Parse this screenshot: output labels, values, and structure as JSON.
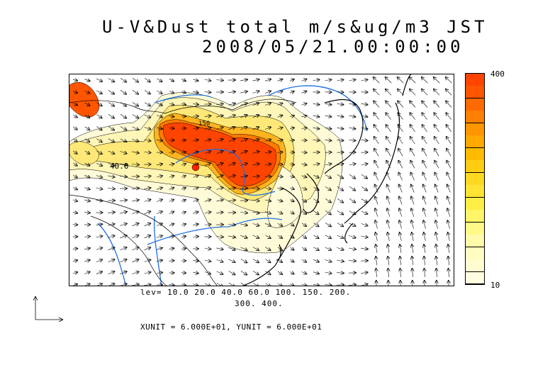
{
  "title": {
    "line1": "U-V&Dust total m/s&ug/m3 JST",
    "line2": "2008/05/21.00:00:00"
  },
  "map": {
    "contour_label_1": "40.0",
    "contour_label_2": "150",
    "ocean_color": "#ffffff",
    "coastline_color": "#000000",
    "river_color": "#1e6fe6",
    "wind_vector_color": "#000000"
  },
  "colorbar": {
    "max_label": "400",
    "min_label": "10",
    "colors_top_to_bottom": [
      "#ff4400",
      "#ff5500",
      "#ff6a00",
      "#ff8000",
      "#ff9500",
      "#ffa800",
      "#ffbb00",
      "#ffcc11",
      "#ffd822",
      "#ffe433",
      "#ffee44",
      "#fff566",
      "#fffa88",
      "#fffbaa",
      "#fffcc0",
      "#fffdd0",
      "#fffee0"
    ]
  },
  "legend": {
    "levels_line1": "lev= 10.0 20.0 40.0 60.0 100. 150. 200.",
    "levels_line2": "300. 400.",
    "units": "XUNIT = 6.000E+01, YUNIT = 6.000E+01"
  }
}
